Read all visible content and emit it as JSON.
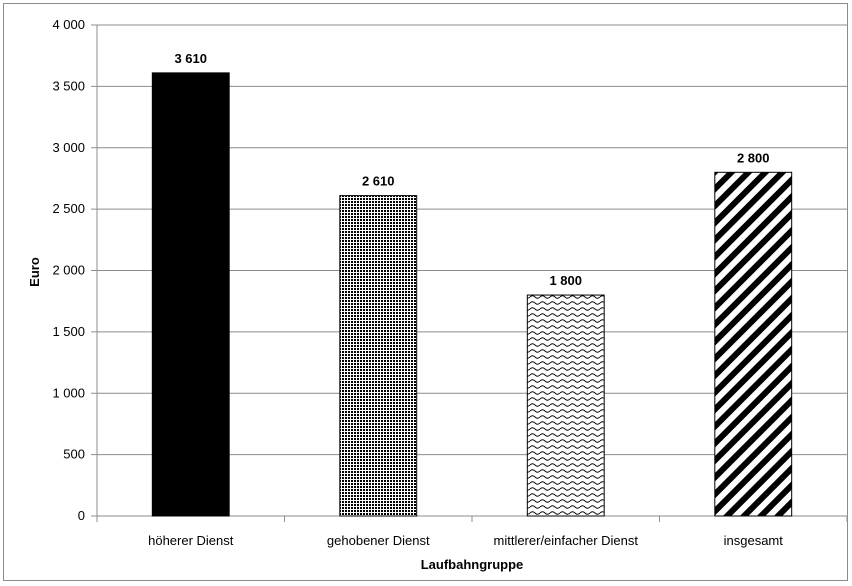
{
  "chart_data": {
    "type": "bar",
    "categories": [
      "höherer Dienst",
      "gehobener Dienst",
      "mittlerer/einfacher Dienst",
      "insgesamt"
    ],
    "values": [
      3610,
      2610,
      1800,
      2800
    ],
    "value_labels": [
      "3 610",
      "2 610",
      "1 800",
      "2 800"
    ],
    "bar_patterns": [
      "solid-black",
      "dotted-grid",
      "wave",
      "diagonal-stripes"
    ],
    "xlabel": "Laufbahngruppe",
    "ylabel": "Euro",
    "ylim": [
      0,
      4000
    ],
    "yticks": [
      0,
      500,
      1000,
      1500,
      2000,
      2500,
      3000,
      3500,
      4000
    ],
    "ytick_labels": [
      "0",
      "500",
      "1 000",
      "1 500",
      "2 000",
      "2 500",
      "3 000",
      "3 500",
      "4 000"
    ],
    "grid": true,
    "legend": "none",
    "colors": {
      "bar_fill": "#000000",
      "grid": "#8c8c8c",
      "axis": "#8c8c8c"
    }
  }
}
